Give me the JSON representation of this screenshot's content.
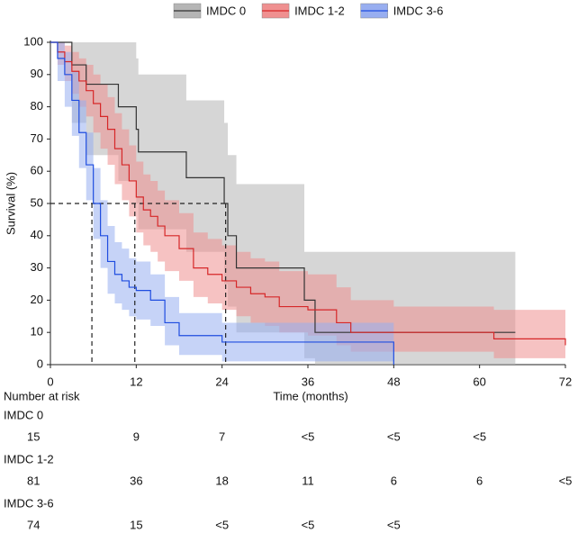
{
  "chart_data": {
    "type": "km",
    "x_label": "Time (months)",
    "y_label": "Survival (%)",
    "xlim": [
      0,
      72
    ],
    "xticks": [
      0,
      12,
      24,
      36,
      48,
      60,
      72
    ],
    "ylim": [
      0,
      100
    ],
    "yticks": [
      0,
      10,
      20,
      30,
      40,
      50,
      60,
      70,
      80,
      90,
      100
    ],
    "median_y": 50,
    "median_x": [
      5.8,
      11.8,
      24.5
    ],
    "series": [
      {
        "name": "IMDC 0",
        "color": "#333333",
        "band_color": "#b5b5b5",
        "x": [
          0,
          3,
          5,
          9.5,
          12,
          12.3,
          19,
          24.3,
          24.8,
          26,
          35.5,
          37,
          65
        ],
        "values": [
          100,
          93,
          87,
          80,
          73,
          66,
          58,
          50,
          40,
          30,
          20,
          10,
          10
        ],
        "upper": [
          100,
          100,
          100,
          100,
          95,
          90,
          82,
          75,
          65,
          56,
          35,
          35,
          35
        ],
        "lower": [
          100,
          75,
          65,
          57,
          50,
          42,
          35,
          25,
          18,
          10,
          2,
          0,
          0
        ]
      },
      {
        "name": "IMDC 1-2",
        "color": "#d62728",
        "band_color": "#ef9090",
        "x": [
          0,
          1,
          2,
          3,
          4,
          5,
          6,
          7,
          8,
          9,
          10,
          11,
          12,
          13,
          14,
          15,
          16,
          18,
          20,
          22,
          24,
          26,
          28,
          30,
          32,
          36,
          40,
          42,
          48,
          60,
          62,
          71.5,
          72
        ],
        "values": [
          100,
          97,
          94,
          91,
          88,
          85,
          81,
          77,
          73,
          67,
          62,
          57,
          52,
          48,
          46,
          43,
          40,
          36,
          30,
          28,
          26,
          24,
          22,
          21,
          18,
          17,
          13,
          10,
          10,
          10,
          8,
          8,
          6
        ],
        "upper": [
          100,
          100,
          99,
          97,
          95,
          93,
          90,
          87,
          83,
          78,
          73,
          68,
          63,
          59,
          57,
          54,
          51,
          47,
          41,
          39,
          37,
          35,
          33,
          32,
          29,
          28,
          24,
          20,
          18,
          18,
          17,
          17,
          16
        ],
        "lower": [
          100,
          93,
          88,
          84,
          80,
          77,
          72,
          67,
          62,
          56,
          51,
          46,
          41,
          37,
          35,
          32,
          29,
          26,
          21,
          19,
          17,
          15,
          13,
          12,
          10,
          9,
          6,
          4,
          4,
          4,
          2,
          2,
          1
        ]
      },
      {
        "name": "IMDC 3-6",
        "color": "#1f4de0",
        "band_color": "#98aef0",
        "x": [
          0,
          1,
          2,
          3,
          4,
          5,
          6,
          7,
          8,
          9,
          10,
          11,
          12,
          14,
          16,
          18,
          20,
          24,
          30,
          36,
          48
        ],
        "values": [
          100,
          95,
          90,
          82,
          72,
          62,
          50,
          40,
          32,
          28,
          26,
          24,
          23,
          20,
          13,
          9,
          9,
          7,
          7,
          7,
          0
        ],
        "upper": [
          100,
          100,
          97,
          91,
          82,
          72,
          61,
          51,
          43,
          38,
          36,
          33,
          32,
          28,
          21,
          16,
          16,
          13,
          13,
          13,
          13
        ],
        "lower": [
          100,
          88,
          80,
          71,
          61,
          51,
          39,
          30,
          22,
          19,
          17,
          15,
          14,
          12,
          6,
          3,
          3,
          1,
          1,
          1,
          0
        ]
      }
    ],
    "risk_table": {
      "title": "Number at risk",
      "rows": [
        [
          "15",
          "9",
          "7",
          "<5",
          "<5",
          "<5"
        ],
        [
          "81",
          "36",
          "18",
          "11",
          "6",
          "6",
          "<5"
        ],
        [
          "74",
          "15",
          "<5",
          "<5",
          "<5"
        ]
      ]
    }
  }
}
